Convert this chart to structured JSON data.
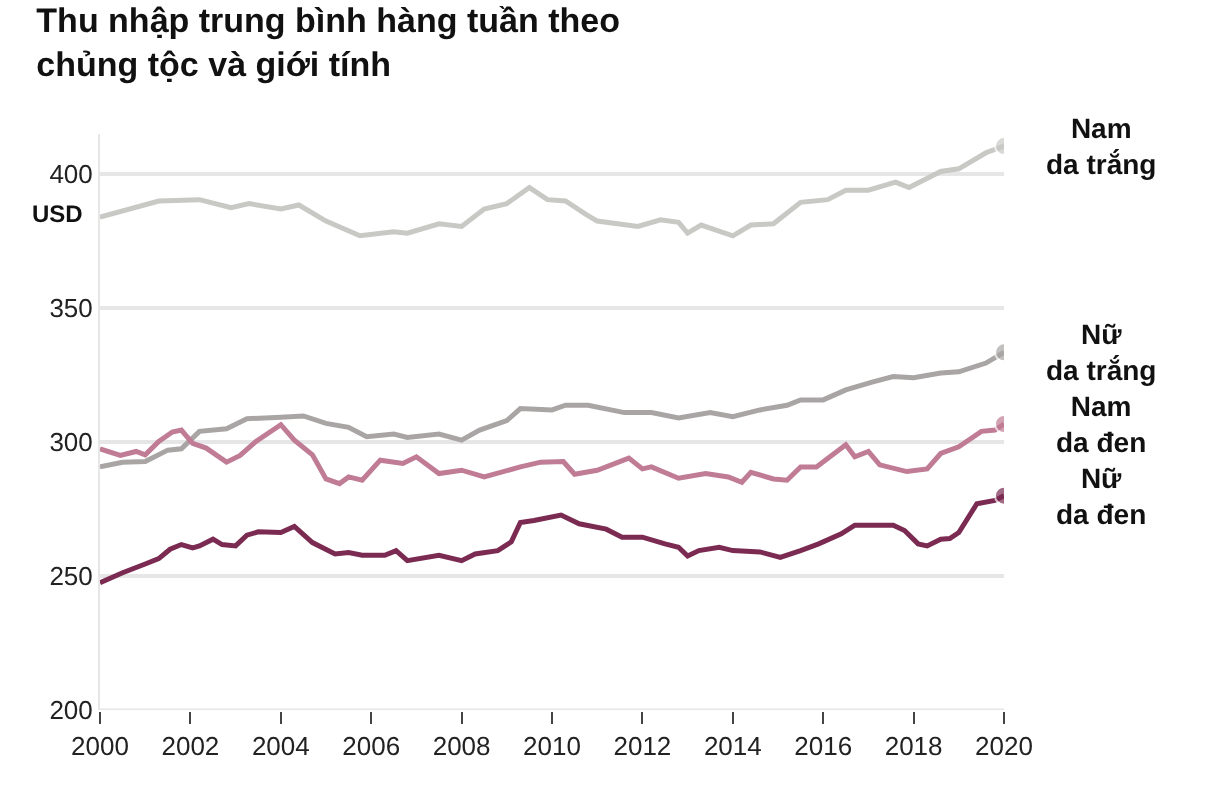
{
  "chart_data": {
    "type": "line",
    "title": "Thu nhập trung bình hàng tuần theo chủng tộc và giới tính",
    "ylabel": "USD",
    "xlim": [
      2000,
      2020
    ],
    "xticks": [
      2000,
      2002,
      2004,
      2006,
      2008,
      2010,
      2012,
      2014,
      2016,
      2018,
      2020
    ],
    "ylim": [
      200,
      415
    ],
    "yticks": [
      200,
      250,
      300,
      350,
      400
    ],
    "grid": "y",
    "legend": false,
    "line_style": "solid",
    "series": [
      {
        "name": "Nam da trắng",
        "color": "#c8c8c4",
        "x": [
          2000,
          2001.3,
          2002.2,
          2002.9,
          2003.3,
          2004,
          2004.4,
          2005,
          2005.75,
          2006.5,
          2006.8,
          2007.5,
          2008,
          2008.5,
          2009,
          2009.5,
          2009.9,
          2010.3,
          2010.75,
          2011,
          2011.9,
          2012.4,
          2012.8,
          2013,
          2013.3,
          2014,
          2014.4,
          2014.9,
          2015.5,
          2016.1,
          2016.5,
          2017,
          2017.6,
          2017.9,
          2018.6,
          2019,
          2019.6,
          2020
        ],
        "values": [
          384,
          390,
          390.5,
          387.5,
          389,
          387,
          388.5,
          382.5,
          377,
          378.5,
          378,
          381.5,
          380.5,
          387,
          389,
          395,
          390.5,
          390,
          385,
          382.5,
          380.5,
          383,
          382,
          378,
          381,
          377,
          381,
          381.5,
          389.5,
          390.5,
          394,
          394,
          397,
          395,
          401,
          402,
          408,
          410.5
        ]
      },
      {
        "name": "Nữ da trắng",
        "color": "#a9a5a5",
        "x": [
          2000,
          2000.5,
          2001,
          2001.5,
          2001.8,
          2002.2,
          2002.8,
          2003.25,
          2004,
          2004.5,
          2005,
          2005.5,
          2005.9,
          2006.5,
          2006.8,
          2007.5,
          2008,
          2008.4,
          2009,
          2009.3,
          2010,
          2010.3,
          2010.8,
          2011.6,
          2012.2,
          2012.8,
          2013.5,
          2014,
          2014.6,
          2015.2,
          2015.5,
          2016,
          2016.5,
          2017.1,
          2017.55,
          2018,
          2018.6,
          2019,
          2019.6,
          2020
        ],
        "values": [
          290.75,
          292.5,
          292.75,
          297,
          297.5,
          304,
          305,
          308.75,
          309.25,
          309.75,
          307,
          305.5,
          302,
          303,
          301.75,
          303,
          300.75,
          304.5,
          308,
          312.5,
          312,
          313.75,
          313.75,
          311,
          311,
          309,
          311,
          309.5,
          312,
          313.75,
          315.75,
          315.75,
          319.5,
          322.5,
          324.5,
          324,
          325.75,
          326.25,
          329.5,
          333.5
        ]
      },
      {
        "name": "Nam da đen",
        "color": "#c07c94",
        "x": [
          2000,
          2000.45,
          2000.8,
          2001,
          2001.3,
          2001.6,
          2001.8,
          2002.05,
          2002.35,
          2002.8,
          2003.1,
          2003.45,
          2004,
          2004.3,
          2004.7,
          2005,
          2005.3,
          2005.5,
          2005.8,
          2006.2,
          2006.7,
          2007,
          2007.5,
          2008,
          2008.5,
          2009.3,
          2009.75,
          2010.25,
          2010.5,
          2011,
          2011.7,
          2012,
          2012.2,
          2012.8,
          2013.4,
          2013.9,
          2014.2,
          2014.4,
          2014.9,
          2015.2,
          2015.5,
          2015.85,
          2016.5,
          2016.7,
          2017,
          2017.25,
          2017.85,
          2018.3,
          2018.6,
          2019,
          2019.5,
          2019.8,
          2020
        ],
        "values": [
          297.5,
          295,
          296.5,
          295.25,
          300.25,
          303.75,
          304.5,
          299.5,
          297.75,
          292.5,
          295,
          300.25,
          306.5,
          300.75,
          295.25,
          286.25,
          284.5,
          287,
          285.75,
          293.25,
          292,
          294.5,
          288.25,
          289.5,
          287,
          290.75,
          292.5,
          292.75,
          288,
          289.5,
          294,
          290,
          290.75,
          286.5,
          288.25,
          287,
          285,
          288.75,
          286.25,
          285.75,
          290.75,
          290.75,
          299,
          294.5,
          296.5,
          291.5,
          289,
          290,
          295.75,
          298.25,
          304,
          304.5,
          306.75
        ]
      },
      {
        "name": "Nữ da đen",
        "color": "#7b2b52",
        "x": [
          2000,
          2000.5,
          2001,
          2001.3,
          2001.55,
          2001.8,
          2002.05,
          2002.2,
          2002.5,
          2002.7,
          2003,
          2003.25,
          2003.5,
          2004,
          2004.3,
          2004.7,
          2005.2,
          2005.5,
          2005.8,
          2006.3,
          2006.55,
          2006.8,
          2007.5,
          2008,
          2008.3,
          2008.8,
          2009.1,
          2009.3,
          2009.6,
          2010.2,
          2010.6,
          2011.2,
          2011.55,
          2012,
          2012.5,
          2012.8,
          2013,
          2013.25,
          2013.7,
          2014,
          2014.6,
          2015.05,
          2015.5,
          2015.9,
          2016.4,
          2016.7,
          2017.55,
          2017.8,
          2018.1,
          2018.3,
          2018.6,
          2018.8,
          2019,
          2019.4,
          2019.8,
          2020
        ],
        "values": [
          247.5,
          251.25,
          254.5,
          256.5,
          260,
          261.75,
          260.5,
          261.25,
          263.75,
          261.75,
          261.25,
          265.25,
          266.5,
          266.25,
          268.5,
          262.5,
          258.25,
          258.75,
          257.75,
          257.75,
          259.5,
          255.75,
          257.75,
          255.75,
          258.25,
          259.5,
          262.75,
          270,
          270.75,
          272.75,
          269.5,
          267.5,
          264.5,
          264.5,
          262,
          260.75,
          257.5,
          259.5,
          260.75,
          259.5,
          259,
          257,
          259.5,
          262,
          265.75,
          269,
          269,
          267,
          262,
          261.25,
          263.75,
          264,
          266.25,
          277,
          278.25,
          280
        ]
      }
    ]
  }
}
